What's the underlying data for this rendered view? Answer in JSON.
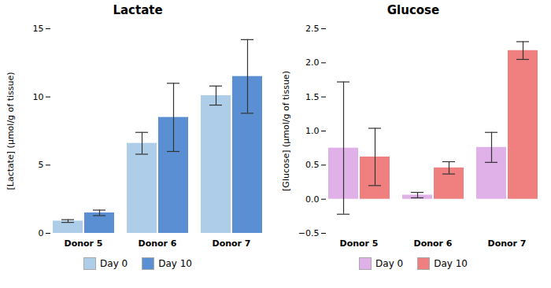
{
  "chart_data": [
    {
      "type": "bar",
      "title": "Lactate",
      "ylabel": "[Lactate] (μmol/g of tissue)",
      "categories": [
        "Donor 5",
        "Donor 6",
        "Donor 7"
      ],
      "series": [
        {
          "name": "Day 0",
          "color": "#aecde8",
          "values": [
            0.9,
            6.6,
            10.1
          ],
          "errors": [
            0.1,
            0.8,
            0.7
          ]
        },
        {
          "name": "Day 10",
          "color": "#5b8fd4",
          "values": [
            1.5,
            8.5,
            11.5
          ],
          "errors": [
            0.2,
            2.5,
            2.7
          ]
        }
      ],
      "ylim": [
        0,
        15
      ],
      "yticks": [
        0,
        5,
        10,
        15
      ],
      "grid": false,
      "legend": "bottom"
    },
    {
      "type": "bar",
      "title": "Glucose",
      "ylabel": "[Glucose] (μmol/g of tissue)",
      "categories": [
        "Donor 5",
        "Donor 6",
        "Donor 7"
      ],
      "series": [
        {
          "name": "Day 0",
          "color": "#e0b0e8",
          "values": [
            0.75,
            0.06,
            0.76
          ],
          "errors": [
            0.97,
            0.04,
            0.22
          ]
        },
        {
          "name": "Day 10",
          "color": "#f08080",
          "values": [
            0.62,
            0.46,
            2.18
          ],
          "errors": [
            0.42,
            0.09,
            0.13
          ]
        }
      ],
      "ylim": [
        -0.5,
        2.5
      ],
      "yticks": [
        {
          "value": -0.5,
          "label": "−0.5"
        },
        {
          "value": 0,
          "label": "0.0"
        },
        0.5,
        {
          "value": 1,
          "label": "1.0"
        },
        1.5,
        {
          "value": 2,
          "label": "2.0"
        },
        2.5
      ],
      "grid": false,
      "legend": "bottom"
    }
  ]
}
